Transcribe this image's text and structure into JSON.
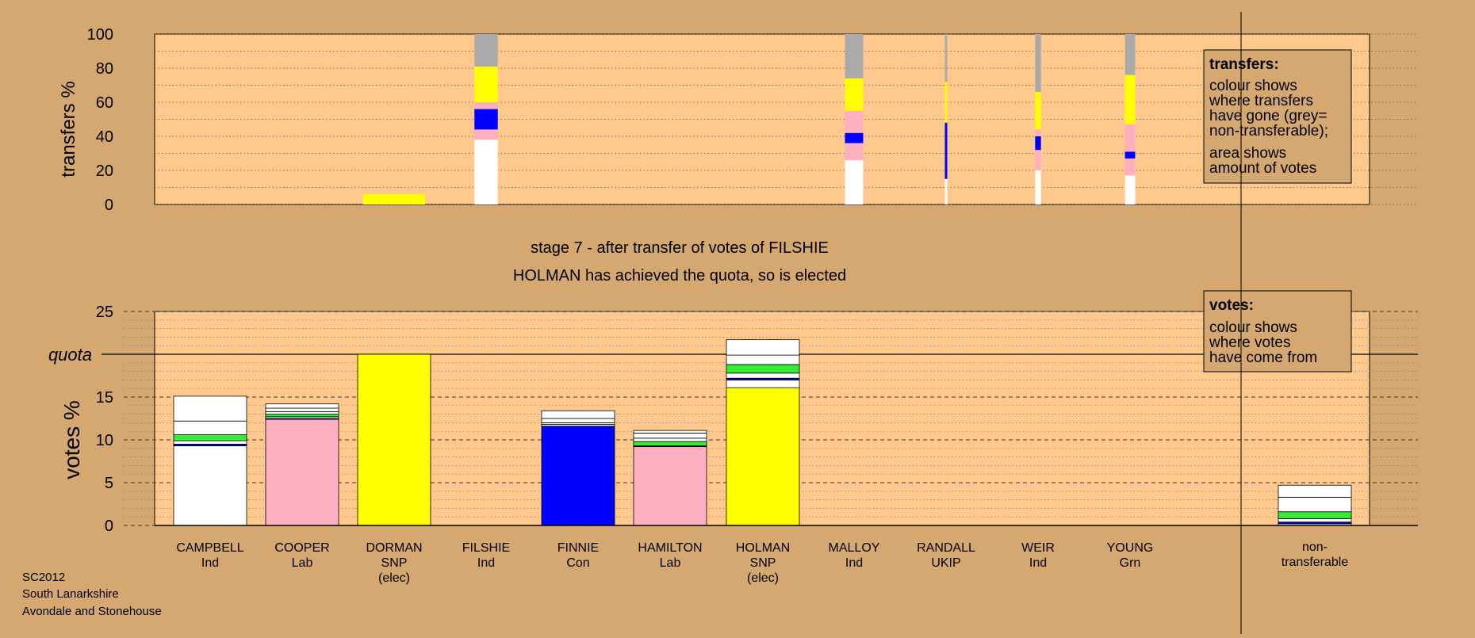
{
  "colors": {
    "background": "#d4a870",
    "panel": "#ffc98e",
    "Ind": "#ffffff",
    "Lab": "#ffb0c0",
    "SNP": "#ffff00",
    "Con": "#0000ff",
    "UKIP": "#a000a0",
    "Grn": "#33ee33",
    "nontransferable": "#aaaaaa"
  },
  "chart_data": [
    {
      "type": "bar",
      "id": "transfers",
      "ylabel": "transfers %",
      "ylim": [
        0,
        100
      ],
      "yticks": [
        0,
        20,
        40,
        60,
        80,
        100
      ],
      "note": {
        "title": "transfers:",
        "lines": [
          "colour shows",
          "where transfers",
          "have gone (grey=",
          "non-transferable);",
          "area shows",
          "amount of votes"
        ]
      },
      "columns": [
        {
          "candidate": "DORMAN",
          "width_frac": 0.85,
          "segments": [
            {
              "color": "SNP",
              "value": 6
            }
          ]
        },
        {
          "candidate": "FILSHIE",
          "width_frac": 0.32,
          "segments": [
            {
              "color": "Ind",
              "value": 38
            },
            {
              "color": "Lab",
              "value": 6
            },
            {
              "color": "Con",
              "value": 12
            },
            {
              "color": "Lab",
              "value": 4
            },
            {
              "color": "SNP",
              "value": 21
            },
            {
              "color": "nontransferable",
              "value": 19
            }
          ]
        },
        {
          "candidate": "MALLOY",
          "width_frac": 0.25,
          "segments": [
            {
              "color": "Ind",
              "value": 26
            },
            {
              "color": "Lab",
              "value": 10
            },
            {
              "color": "Con",
              "value": 6
            },
            {
              "color": "Lab",
              "value": 13
            },
            {
              "color": "SNP",
              "value": 19
            },
            {
              "color": "nontransferable",
              "value": 26
            }
          ]
        },
        {
          "candidate": "RANDALL",
          "width_frac": 0.03,
          "segments": [
            {
              "color": "Ind",
              "value": 15
            },
            {
              "color": "Con",
              "value": 33
            },
            {
              "color": "SNP",
              "value": 24
            },
            {
              "color": "nontransferable",
              "value": 28
            }
          ]
        },
        {
          "candidate": "WEIR",
          "width_frac": 0.08,
          "segments": [
            {
              "color": "Ind",
              "value": 20
            },
            {
              "color": "Lab",
              "value": 12
            },
            {
              "color": "Con",
              "value": 8
            },
            {
              "color": "Lab",
              "value": 4
            },
            {
              "color": "SNP",
              "value": 22
            },
            {
              "color": "nontransferable",
              "value": 34
            }
          ]
        },
        {
          "candidate": "YOUNG",
          "width_frac": 0.14,
          "segments": [
            {
              "color": "Ind",
              "value": 17
            },
            {
              "color": "Lab",
              "value": 10
            },
            {
              "color": "Con",
              "value": 4
            },
            {
              "color": "Lab",
              "value": 16
            },
            {
              "color": "SNP",
              "value": 29
            },
            {
              "color": "nontransferable",
              "value": 24
            }
          ]
        }
      ]
    },
    {
      "type": "bar",
      "id": "votes",
      "title": "stage 7 - after transfer of votes of FILSHIE",
      "subtitle": "HOLMAN has achieved the quota, so is elected",
      "ylabel": "votes %",
      "quota_label": "quota",
      "quota": 20,
      "ylim": [
        0,
        25
      ],
      "yticks": [
        0,
        5,
        10,
        15,
        20,
        25
      ],
      "note": {
        "title": "votes:",
        "lines": [
          "colour shows",
          "where votes",
          "have come from"
        ]
      },
      "candidates": [
        {
          "name": "CAMPBELL",
          "party": "Ind",
          "elec": "",
          "segments": [
            {
              "color": "Ind",
              "value": 9.3
            },
            {
              "color": "Con",
              "value": 0.2
            },
            {
              "color": "Ind",
              "value": 0.4
            },
            {
              "color": "Grn",
              "value": 0.7
            },
            {
              "color": "Ind",
              "value": 1.6
            },
            {
              "color": "Ind",
              "value": 2.9
            }
          ]
        },
        {
          "name": "COOPER",
          "party": "Lab",
          "elec": "",
          "segments": [
            {
              "color": "Lab",
              "value": 12.4
            },
            {
              "color": "Con",
              "value": 0.1
            },
            {
              "color": "Ind",
              "value": 0.2
            },
            {
              "color": "Grn",
              "value": 0.3
            },
            {
              "color": "Ind",
              "value": 0.3
            },
            {
              "color": "Ind",
              "value": 0.4
            },
            {
              "color": "Ind",
              "value": 0.5
            }
          ]
        },
        {
          "name": "DORMAN",
          "party": "SNP",
          "elec": "(elec)",
          "segments": [
            {
              "color": "SNP",
              "value": 20.0
            }
          ]
        },
        {
          "name": "FILSHIE",
          "party": "Ind",
          "elec": "",
          "segments": []
        },
        {
          "name": "FINNIE",
          "party": "Con",
          "elec": "",
          "segments": [
            {
              "color": "Con",
              "value": 11.6
            },
            {
              "color": "Ind",
              "value": 0.2
            },
            {
              "color": "Ind",
              "value": 0.2
            },
            {
              "color": "Ind",
              "value": 0.5
            },
            {
              "color": "Ind",
              "value": 0.9
            }
          ]
        },
        {
          "name": "HAMILTON",
          "party": "Lab",
          "elec": "",
          "segments": [
            {
              "color": "Lab",
              "value": 9.2
            },
            {
              "color": "Con",
              "value": 0.1
            },
            {
              "color": "Grn",
              "value": 0.5
            },
            {
              "color": "Ind",
              "value": 0.4
            },
            {
              "color": "Ind",
              "value": 0.6
            },
            {
              "color": "Ind",
              "value": 0.3
            }
          ]
        },
        {
          "name": "HOLMAN",
          "party": "SNP",
          "elec": "(elec)",
          "segments": [
            {
              "color": "SNP",
              "value": 16.1
            },
            {
              "color": "Ind",
              "value": 0.9
            },
            {
              "color": "Con",
              "value": 0.2
            },
            {
              "color": "Ind",
              "value": 0.6
            },
            {
              "color": "Grn",
              "value": 1.0
            },
            {
              "color": "Ind",
              "value": 1.1
            },
            {
              "color": "Ind",
              "value": 1.8
            }
          ]
        },
        {
          "name": "MALLOY",
          "party": "Ind",
          "elec": "",
          "segments": []
        },
        {
          "name": "RANDALL",
          "party": "UKIP",
          "elec": "",
          "segments": []
        },
        {
          "name": "WEIR",
          "party": "Ind",
          "elec": "",
          "segments": []
        },
        {
          "name": "YOUNG",
          "party": "Grn",
          "elec": "",
          "segments": []
        }
      ],
      "nontransferable": {
        "label_lines": [
          "non-",
          "transferable"
        ],
        "segments": [
          {
            "color": "Ind",
            "value": 0.2
          },
          {
            "color": "Con",
            "value": 0.2
          },
          {
            "color": "Ind",
            "value": 0.4
          },
          {
            "color": "Grn",
            "value": 0.8
          },
          {
            "color": "Ind",
            "value": 1.7
          },
          {
            "color": "Ind",
            "value": 1.4
          }
        ]
      }
    }
  ],
  "footer": {
    "code": "SC2012",
    "council": "South Lanarkshire",
    "ward": "Avondale and Stonehouse"
  }
}
